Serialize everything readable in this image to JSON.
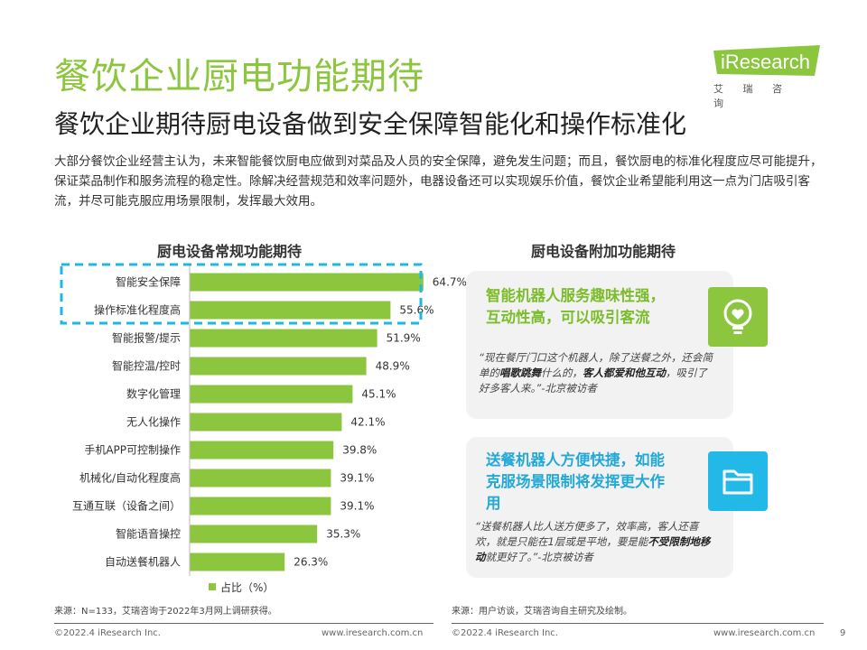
{
  "title": "餐饮企业厨电功能期待",
  "subtitle": "餐饮企业期待厨电设备做到安全保障智能化和操作标准化",
  "logo": {
    "text": "iResearch",
    "sub": "艾 瑞 咨 询"
  },
  "intro": "大部分餐饮企业经营主认为，未来智能餐饮厨电应做到对菜品及人员的安全保障，避免发生问题；而且，餐饮厨电的标准化程度应尽可能提升，保证菜品制作和服务流程的稳定性。除解决经营规范和效率问题外，电器设备还可以实现娱乐价值，餐饮企业希望能利用这一点为门店吸引客流，并尽可能克服应用场景限制，发挥最大效用。",
  "colors": {
    "accent_green": "#8cc63f",
    "accent_blue": "#22b8e8",
    "highlight_box": "#1fb8e6",
    "bar": "#8cc63f"
  },
  "chart_data": {
    "type": "bar",
    "orientation": "horizontal",
    "title": "厨电设备常规功能期待",
    "categories": [
      "智能安全保障",
      "操作标准化程度高",
      "智能报警/提示",
      "智能控温/控时",
      "数字化管理",
      "无人化操作",
      "手机APP可控制操作",
      "机械化/自动化程度高",
      "互通互联（设备之间）",
      "智能语音操控",
      "自动送餐机器人"
    ],
    "values": [
      64.7,
      55.6,
      51.9,
      48.9,
      45.1,
      42.1,
      39.8,
      39.1,
      39.1,
      35.3,
      26.3
    ],
    "value_suffix": "%",
    "series": [
      {
        "name": "占比（%）",
        "values": [
          64.7,
          55.6,
          51.9,
          48.9,
          45.1,
          42.1,
          39.8,
          39.1,
          39.1,
          35.3,
          26.3
        ]
      }
    ],
    "legend": "bottom",
    "highlighted_categories": [
      "智能安全保障",
      "操作标准化程度高"
    ],
    "grid": false,
    "xlim": [
      0,
      100
    ]
  },
  "right_panel": {
    "title": "厨电设备附加功能期待",
    "card1": {
      "headline": "智能机器人服务趣味性强，互动性高，可以吸引客流",
      "quote_parts": [
        "“现在餐厅门口这个机器人，除了送餐之外，还会简单的",
        "唱歌跳舞",
        "什么的，",
        "客人都爱和他互动",
        "，吸引了好多客人来。”-北京被访者"
      ],
      "icon": "lightbulb-heart-icon"
    },
    "card2": {
      "headline": "送餐机器人方便快捷，如能克服场景限制将发挥更大作用",
      "quote_parts": [
        "“送餐机器人比人送方便多了，效率高，客人还喜欢，就是只能在1层或是平地，要是能",
        "不受限制地移动",
        "就更好了。”-北京被访者"
      ],
      "icon": "folder-icon"
    }
  },
  "sources": {
    "left": "来源：N=133，艾瑞咨询于2022年3月网上调研获得。",
    "right": "来源：用户访谈，艾瑞咨询自主研究及绘制。"
  },
  "footer": {
    "copyright_left": "©2022.4 iResearch Inc.",
    "url_left": "www.iresearch.com.cn",
    "copyright_right": "©2022.4 iResearch Inc.",
    "url_right": "www.iresearch.com.cn",
    "page_number": "9"
  }
}
